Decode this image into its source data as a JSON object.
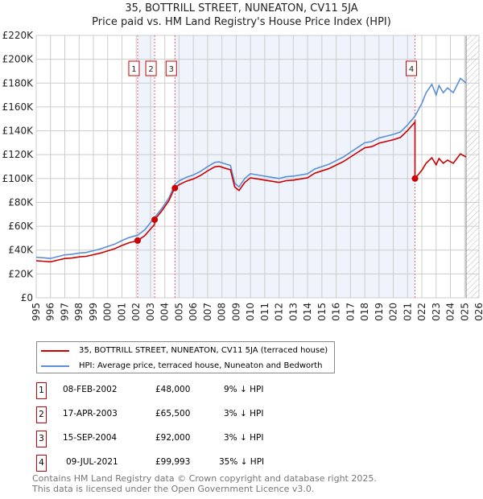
{
  "title_line1": "35, BOTTRILL STREET, NUNEATON, CV11 5JA",
  "title_line2": "Price paid vs. HM Land Registry's House Price Index (HPI)",
  "chart_data": {
    "type": "line",
    "xlim": [
      1995,
      2026
    ],
    "ylim": [
      0,
      220000
    ],
    "y_ticks": [
      0,
      20000,
      40000,
      60000,
      80000,
      100000,
      120000,
      140000,
      160000,
      180000,
      200000,
      220000
    ],
    "y_tick_labels": [
      "£0",
      "£20K",
      "£40K",
      "£60K",
      "£80K",
      "£100K",
      "£120K",
      "£140K",
      "£160K",
      "£180K",
      "£200K",
      "£220K"
    ],
    "x_tick_labels": [
      "1995",
      "1996",
      "1997",
      "1998",
      "1999",
      "2000",
      "2001",
      "2002",
      "2003",
      "2004",
      "2005",
      "2006",
      "2007",
      "2008",
      "2009",
      "2010",
      "2011",
      "2012",
      "2013",
      "2014",
      "2015",
      "2016",
      "2017",
      "2018",
      "2019",
      "2020",
      "2021",
      "2022",
      "2023",
      "2024",
      "2025",
      "2026"
    ],
    "grid": true,
    "forecast_hatch_from": 2025.1,
    "colors": {
      "price": "#cc0000",
      "hpi": "#5b8fd6"
    },
    "hpi_series": {
      "name": "HPI: Average price, terraced house, Nuneaton and Bedworth",
      "x": [
        1995,
        1995.5,
        1996,
        1996.5,
        1997,
        1997.5,
        1998,
        1998.5,
        1999,
        1999.5,
        2000,
        2000.5,
        2001,
        2001.5,
        2002.1,
        2002.6,
        2003.3,
        2003.8,
        2004.3,
        2004.7,
        2005,
        2005.5,
        2006,
        2006.5,
        2007,
        2007.5,
        2007.8,
        2008.3,
        2008.6,
        2008.9,
        2009.2,
        2009.6,
        2010,
        2010.5,
        2011,
        2011.5,
        2012,
        2012.5,
        2013,
        2013.5,
        2014,
        2014.5,
        2015,
        2015.5,
        2016,
        2016.5,
        2017,
        2017.5,
        2018,
        2018.5,
        2019,
        2019.5,
        2020,
        2020.5,
        2021,
        2021.5,
        2022,
        2022.3,
        2022.7,
        2023.0,
        2023.2,
        2023.5,
        2023.8,
        2024.2,
        2024.7,
        2025.1
      ],
      "y": [
        34000,
        33500,
        33000,
        34500,
        36000,
        36500,
        37500,
        38000,
        39500,
        41000,
        43000,
        45000,
        48000,
        50500,
        52500,
        57000,
        67500,
        75000,
        84000,
        95000,
        98000,
        101000,
        103000,
        106000,
        110000,
        113500,
        114000,
        112000,
        111000,
        96000,
        93000,
        100000,
        104000,
        103000,
        102000,
        101000,
        100000,
        101500,
        102000,
        103000,
        104000,
        108000,
        110000,
        112000,
        115000,
        118000,
        122000,
        126000,
        130000,
        131000,
        134000,
        135500,
        137000,
        139000,
        145000,
        152000,
        163000,
        172000,
        179000,
        170000,
        178000,
        172000,
        176000,
        172000,
        184000,
        180000
      ]
    },
    "price_series": {
      "name": "35, BOTTRILL STREET, NUNEATON, CV11 5JA (terraced house)"
    },
    "sales": [
      {
        "id": "1",
        "x": 2002.1,
        "date": "08-FEB-2002",
        "price": 48000,
        "price_label": "£48,000",
        "hpi_diff": "9% ↓ HPI"
      },
      {
        "id": "2",
        "x": 2003.29,
        "date": "17-APR-2003",
        "price": 65500,
        "price_label": "£65,500",
        "hpi_diff": "3% ↓ HPI"
      },
      {
        "id": "3",
        "x": 2004.71,
        "date": "15-SEP-2004",
        "price": 92000,
        "price_label": "£92,000",
        "hpi_diff": "3% ↓ HPI"
      },
      {
        "id": "4",
        "x": 2021.52,
        "date": "09-JUL-2021",
        "price": 99993,
        "price_label": "£99,993",
        "hpi_diff": "35% ↓ HPI"
      }
    ]
  },
  "footer_line1": "Contains HM Land Registry data © Crown copyright and database right 2025.",
  "footer_line2": "This data is licensed under the Open Government Licence v3.0."
}
